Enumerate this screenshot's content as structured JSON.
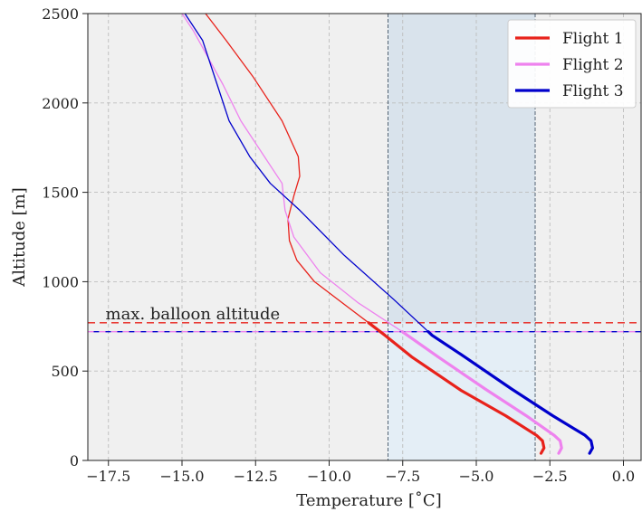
{
  "chart_data": {
    "type": "line",
    "title": "",
    "xlabel": "Temperature [$^\\circ$C]",
    "ylabel": "Altitude [m]",
    "xlim": [
      -18.2,
      0.6
    ],
    "ylim": [
      0,
      2500
    ],
    "x_ticks": [
      -17.5,
      -15.0,
      -12.5,
      -10.0,
      -7.5,
      -5.0,
      -2.5,
      0.0
    ],
    "x_tick_labels": [
      "−17.5",
      "−15.0",
      "−12.5",
      "−10.0",
      "−7.5",
      "−5.0",
      "−2.5",
      "0.0"
    ],
    "y_ticks": [
      0,
      500,
      1000,
      1500,
      2000,
      2500
    ],
    "y_tick_labels": [
      "0",
      "500",
      "1000",
      "1500",
      "2000",
      "2500"
    ],
    "grid": true,
    "legend_position": "top-right",
    "shaded_regions": [
      {
        "x": [
          -8.0,
          -3.0
        ],
        "y_full": [
          0,
          2500
        ],
        "color": "#d9e3ec",
        "lower_y": [
          0,
          770
        ],
        "lower_color": "#e4eef6"
      }
    ],
    "vertical_lines": [
      -8.0,
      -3.0
    ],
    "horizontal_lines": [
      {
        "y": 770,
        "color": "#e8221b"
      },
      {
        "y": 720,
        "color": "#ee82ee",
        "dash_alt": "#0000cc"
      }
    ],
    "annotations": [
      {
        "text": "max. balloon altitude",
        "x": -17.6,
        "y": 790
      }
    ],
    "series": [
      {
        "name": "Flight 1",
        "color": "#e8221b",
        "balloon_limit": 770,
        "x": [
          -2.8,
          -2.7,
          -2.75,
          -2.95,
          -4.0,
          -5.5,
          -7.2,
          -8.1,
          -9.3,
          -10.5,
          -11.1,
          -11.35,
          -11.4,
          -11.2,
          -11.0,
          -11.05,
          -11.6,
          -12.6,
          -13.5,
          -14.2
        ],
        "y": [
          40,
          70,
          110,
          140,
          250,
          390,
          580,
          700,
          850,
          1000,
          1120,
          1230,
          1350,
          1480,
          1590,
          1700,
          1900,
          2150,
          2350,
          2500
        ]
      },
      {
        "name": "Flight 2",
        "color": "#ee82ee",
        "balloon_limit": 720,
        "x": [
          -2.2,
          -2.1,
          -2.15,
          -2.35,
          -3.3,
          -4.7,
          -6.3,
          -7.6,
          -9.0,
          -10.3,
          -11.2,
          -11.5,
          -11.6,
          -12.2,
          -13.0,
          -13.6,
          -14.6,
          -15.0
        ],
        "y": [
          40,
          70,
          110,
          140,
          250,
          400,
          580,
          730,
          880,
          1050,
          1250,
          1400,
          1550,
          1700,
          1900,
          2100,
          2400,
          2500
        ]
      },
      {
        "name": "Flight 3",
        "color": "#0000cc",
        "balloon_limit": 720,
        "x": [
          -1.15,
          -1.05,
          -1.1,
          -1.3,
          -2.4,
          -3.8,
          -5.4,
          -6.5,
          -7.8,
          -9.5,
          -11.0,
          -12.0,
          -12.7,
          -13.4,
          -13.8,
          -14.3,
          -14.9
        ],
        "y": [
          40,
          70,
          110,
          140,
          250,
          400,
          580,
          700,
          900,
          1150,
          1400,
          1550,
          1700,
          1900,
          2100,
          2350,
          2500
        ]
      }
    ]
  }
}
